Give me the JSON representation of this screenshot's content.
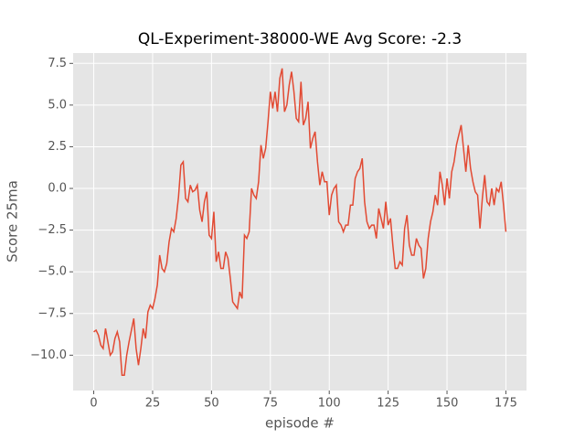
{
  "chart_data": {
    "type": "line",
    "title": "QL-Experiment-38000-WE Avg Score: -2.3",
    "xlabel": "episode #",
    "ylabel": "Score 25ma",
    "x": [
      0,
      1,
      2,
      3,
      4,
      5,
      6,
      7,
      8,
      9,
      10,
      11,
      12,
      13,
      14,
      15,
      16,
      17,
      18,
      19,
      20,
      21,
      22,
      23,
      24,
      25,
      26,
      27,
      28,
      29,
      30,
      31,
      32,
      33,
      34,
      35,
      36,
      37,
      38,
      39,
      40,
      41,
      42,
      43,
      44,
      45,
      46,
      47,
      48,
      49,
      50,
      51,
      52,
      53,
      54,
      55,
      56,
      57,
      58,
      59,
      60,
      61,
      62,
      63,
      64,
      65,
      66,
      67,
      68,
      69,
      70,
      71,
      72,
      73,
      74,
      75,
      76,
      77,
      78,
      79,
      80,
      81,
      82,
      83,
      84,
      85,
      86,
      87,
      88,
      89,
      90,
      91,
      92,
      93,
      94,
      95,
      96,
      97,
      98,
      99,
      100,
      101,
      102,
      103,
      104,
      105,
      106,
      107,
      108,
      109,
      110,
      111,
      112,
      113,
      114,
      115,
      116,
      117,
      118,
      119,
      120,
      121,
      122,
      123,
      124,
      125,
      126,
      127,
      128,
      129,
      130,
      131,
      132,
      133,
      134,
      135,
      136,
      137,
      138,
      139,
      140,
      141,
      142,
      143,
      144,
      145,
      146,
      147,
      148,
      149,
      150,
      151,
      152,
      153,
      154,
      155,
      156,
      157,
      158,
      159,
      160,
      161,
      162,
      163,
      164,
      165,
      166,
      167,
      168,
      169,
      170,
      171,
      172,
      173,
      174,
      175
    ],
    "values": [
      -8.6,
      -8.5,
      -8.8,
      -9.4,
      -9.6,
      -8.4,
      -9.2,
      -10.0,
      -9.8,
      -9.0,
      -8.6,
      -9.2,
      -11.2,
      -11.2,
      -10.0,
      -9.2,
      -8.5,
      -7.8,
      -9.6,
      -10.6,
      -9.6,
      -8.4,
      -9.0,
      -7.4,
      -7.0,
      -7.2,
      -6.6,
      -5.8,
      -4.0,
      -4.8,
      -5.0,
      -4.5,
      -3.2,
      -2.4,
      -2.6,
      -1.8,
      -0.5,
      1.4,
      1.6,
      -0.6,
      -0.8,
      0.2,
      -0.2,
      -0.1,
      0.2,
      -1.3,
      -2.0,
      -0.8,
      -0.2,
      -2.8,
      -3.0,
      -1.4,
      -4.4,
      -3.8,
      -4.8,
      -4.8,
      -3.8,
      -4.2,
      -5.4,
      -6.8,
      -7.0,
      -7.2,
      -6.2,
      -6.6,
      -2.8,
      -3.0,
      -2.6,
      0.0,
      -0.4,
      -0.6,
      0.4,
      2.6,
      1.8,
      2.4,
      4.0,
      5.8,
      4.8,
      5.8,
      4.6,
      6.6,
      7.2,
      4.6,
      5.0,
      6.2,
      7.0,
      5.8,
      4.2,
      4.0,
      6.4,
      3.8,
      4.2,
      5.2,
      2.4,
      3.0,
      3.4,
      1.6,
      0.2,
      1.0,
      0.4,
      0.4,
      -1.6,
      -0.4,
      0.0,
      0.2,
      -2.0,
      -2.2,
      -2.6,
      -2.2,
      -2.2,
      -1.0,
      -1.0,
      0.6,
      1.0,
      1.2,
      1.8,
      -0.8,
      -2.0,
      -2.4,
      -2.2,
      -2.2,
      -3.0,
      -1.2,
      -1.8,
      -2.4,
      -0.8,
      -2.2,
      -1.8,
      -3.4,
      -4.8,
      -4.8,
      -4.4,
      -4.6,
      -2.4,
      -1.6,
      -3.4,
      -4.0,
      -4.0,
      -3.0,
      -3.4,
      -3.6,
      -5.4,
      -4.8,
      -3.0,
      -2.0,
      -1.4,
      -0.4,
      -1.0,
      1.0,
      0.2,
      -1.0,
      0.6,
      -0.6,
      1.0,
      1.6,
      2.6,
      3.2,
      3.8,
      2.4,
      1.0,
      2.6,
      1.2,
      0.4,
      -0.2,
      -0.4,
      -2.4,
      -0.6,
      0.8,
      -0.8,
      -1.0,
      0.0,
      -1.0,
      0.0,
      -0.2,
      0.4,
      -1.0,
      -2.6
    ],
    "color": "#e24a33",
    "xlim": [
      -8.75,
      183.75
    ],
    "ylim": [
      -12.12,
      8.12
    ],
    "xticks": [
      0,
      25,
      50,
      75,
      100,
      125,
      150,
      175
    ],
    "yticks": [
      {
        "value": -10,
        "label": "−10.0"
      },
      {
        "value": -7.5,
        "label": "−7.5"
      },
      {
        "value": -5,
        "label": "−5.0"
      },
      {
        "value": -2.5,
        "label": "−2.5"
      },
      {
        "value": 0,
        "label": "0.0"
      },
      2.5,
      {
        "value": 5,
        "label": "5.0"
      },
      7.5
    ],
    "grid": true
  }
}
